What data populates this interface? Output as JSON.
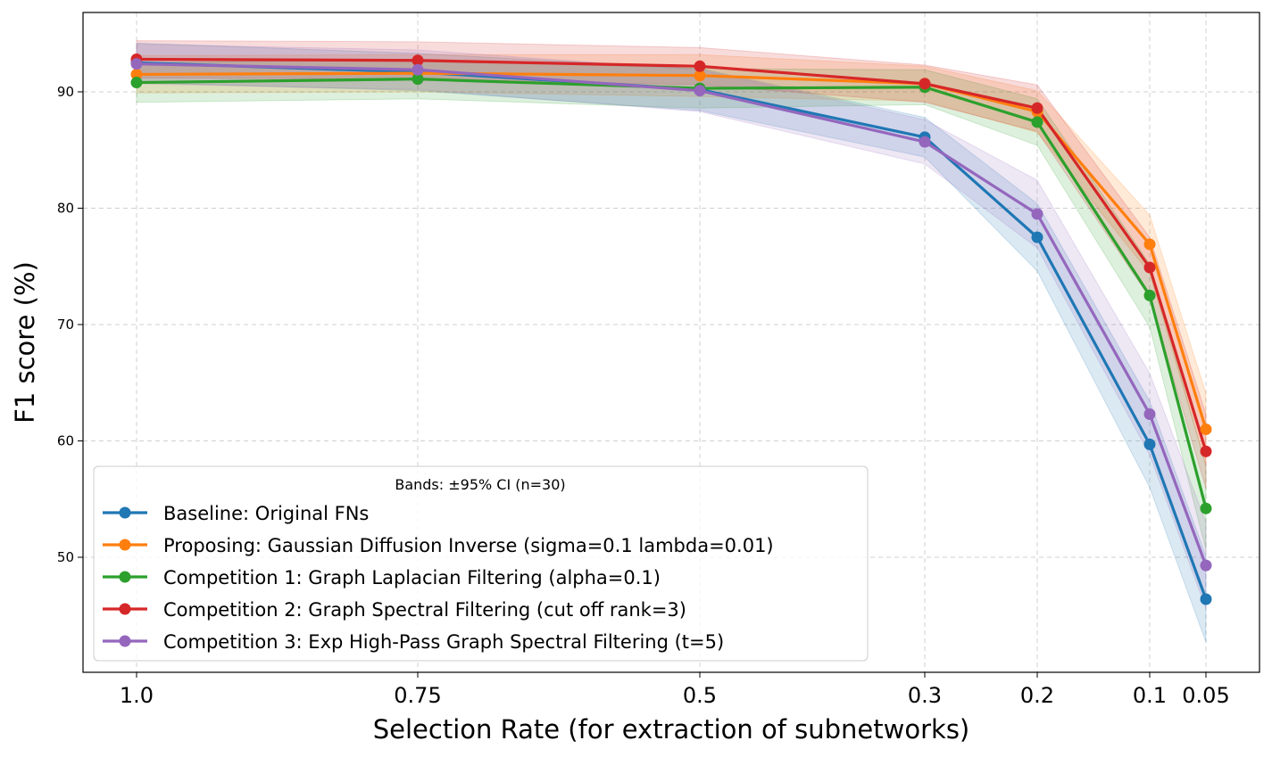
{
  "chart_data": {
    "type": "line",
    "xlabel": "Selection Rate (for extraction of subnetworks)",
    "ylabel": "F1 score (%)",
    "x": [
      "1.0",
      "0.75",
      "0.5",
      "0.3",
      "0.2",
      "0.1",
      "0.05"
    ],
    "ylim": [
      40,
      97
    ],
    "yticks": [
      50,
      60,
      70,
      80,
      90
    ],
    "grid": true,
    "legend_position": "lower-left",
    "legend_title": "Bands: ±95% CI (n=30)",
    "series": [
      {
        "name": "Baseline: Original FNs",
        "color": "#1f77b4",
        "values": [
          92.5,
          91.7,
          90.2,
          86.1,
          77.5,
          59.7,
          46.4
        ],
        "ci_lower": [
          90.8,
          90.1,
          88.4,
          84.4,
          74.6,
          56.0,
          42.7
        ],
        "ci_upper": [
          94.2,
          93.3,
          92.0,
          87.8,
          80.4,
          63.4,
          50.1
        ]
      },
      {
        "name": "Proposing: Gaussian Diffusion Inverse (sigma=0.1 lambda=0.01)",
        "color": "#ff7f0e",
        "values": [
          91.5,
          91.6,
          91.4,
          90.7,
          88.3,
          76.9,
          61.0
        ],
        "ci_lower": [
          89.9,
          90.0,
          89.6,
          89.2,
          86.5,
          74.4,
          57.9
        ],
        "ci_upper": [
          93.1,
          93.2,
          93.2,
          92.2,
          90.1,
          79.4,
          64.1
        ]
      },
      {
        "name": "Competition 1: Graph Laplacian Filtering (alpha=0.1)",
        "color": "#2ca02c",
        "values": [
          90.8,
          91.1,
          90.3,
          90.4,
          87.4,
          72.5,
          54.2
        ],
        "ci_lower": [
          89.1,
          89.4,
          88.6,
          88.9,
          85.4,
          69.8,
          50.6
        ],
        "ci_upper": [
          92.5,
          92.8,
          92.0,
          91.9,
          89.4,
          75.2,
          57.8
        ]
      },
      {
        "name": "Competition 2: Graph Spectral Filtering (cut off rank=3)",
        "color": "#d62728",
        "values": [
          92.8,
          92.7,
          92.2,
          90.7,
          88.6,
          74.9,
          59.1
        ],
        "ci_lower": [
          91.2,
          91.1,
          90.6,
          89.1,
          86.6,
          72.3,
          55.9
        ],
        "ci_upper": [
          94.4,
          94.3,
          93.8,
          92.3,
          90.6,
          77.5,
          62.3
        ]
      },
      {
        "name": "Competition 3: Exp High-Pass Graph Spectral Filtering (t=5)",
        "color": "#9467bd",
        "values": [
          92.4,
          91.9,
          90.1,
          85.7,
          79.5,
          62.3,
          49.3
        ],
        "ci_lower": [
          90.7,
          90.2,
          88.3,
          83.8,
          76.6,
          58.8,
          45.6
        ],
        "ci_upper": [
          94.1,
          93.6,
          91.9,
          87.6,
          82.4,
          65.8,
          53.0
        ]
      }
    ]
  }
}
